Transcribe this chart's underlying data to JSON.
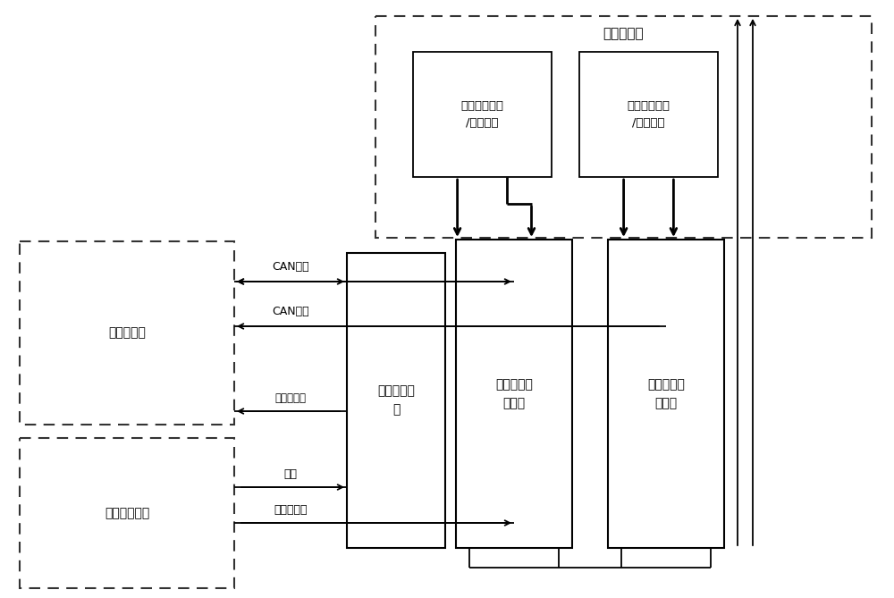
{
  "bg_color": "#ffffff",
  "line_color": "#000000",
  "text_color": "#000000",
  "title": "数传分系统",
  "box_shuxing": "星务分系统",
  "box_gongdian": "供配电分系统",
  "box_dianyuan": "电源转换模\n块",
  "box_img1": "第一图像处\n理单元",
  "box_img2": "第二图像处\n理单元",
  "box_weilight": "微光图像数据\n/目标信息",
  "box_infrared": "红外图像数据\n/目标信息",
  "label_can1": "CAN总线",
  "label_can2": "CAN总线",
  "label_moni": "模拟量遥测",
  "label_gongdian": "供电",
  "label_kaiguan": "开关机指令",
  "figsize": [
    10.0,
    6.69
  ],
  "dpi": 100
}
